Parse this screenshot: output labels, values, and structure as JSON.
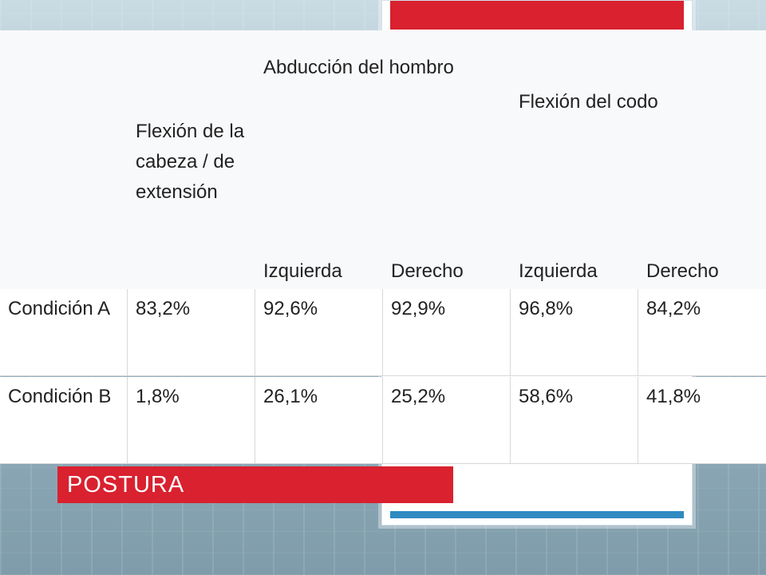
{
  "colors": {
    "accent_red": "#d9212f",
    "accent_blue": "#2f8ac2"
  },
  "table": {
    "headers": {
      "col1": "Flexión de la cabeza / de extensión",
      "group_shoulder": "Abducción del hombro",
      "group_elbow": "Flexión del codo",
      "shoulder_left": "Izquierda",
      "shoulder_right": "Derecho",
      "elbow_left": "Izquierda",
      "elbow_right": "Derecho"
    },
    "rows": [
      {
        "label": "Condición A",
        "values": [
          "83,2%",
          "92,6%",
          "92,9%",
          "96,8%",
          "84,2%"
        ]
      },
      {
        "label": "Condición B",
        "values": [
          "1,8%",
          "26,1%",
          "25,2%",
          "58,6%",
          "41,8%"
        ]
      }
    ]
  },
  "banner": {
    "title": "POSTURA"
  }
}
